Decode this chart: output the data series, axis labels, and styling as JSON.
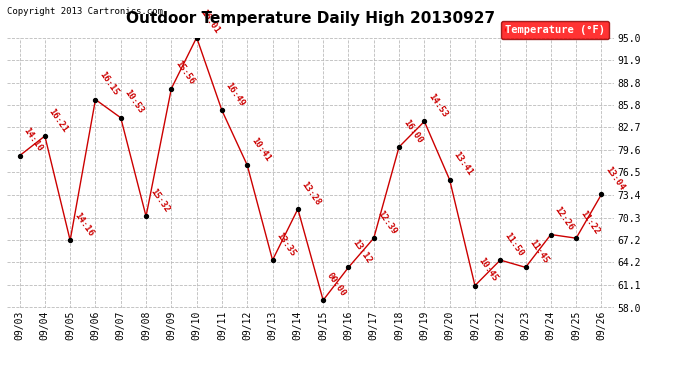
{
  "title": "Outdoor Temperature Daily High 20130927",
  "copyright": "Copyright 2013 Cartronics.com",
  "legend_label": "Temperature (°F)",
  "dates": [
    "09/03",
    "09/04",
    "09/05",
    "09/06",
    "09/07",
    "09/08",
    "09/09",
    "09/10",
    "09/11",
    "09/12",
    "09/13",
    "09/14",
    "09/15",
    "09/16",
    "09/17",
    "09/18",
    "09/19",
    "09/20",
    "09/21",
    "09/22",
    "09/23",
    "09/24",
    "09/25",
    "09/26"
  ],
  "temps": [
    78.8,
    81.5,
    67.2,
    86.5,
    84.0,
    70.5,
    88.0,
    95.0,
    85.0,
    77.5,
    64.5,
    71.5,
    59.0,
    63.5,
    67.5,
    80.0,
    83.5,
    75.5,
    61.0,
    64.5,
    63.5,
    68.0,
    67.5,
    73.5
  ],
  "labels": [
    "14:10",
    "16:21",
    "14:16",
    "16:15",
    "10:53",
    "15:32",
    "15:56",
    "16:01",
    "16:49",
    "10:41",
    "13:35",
    "13:28",
    "00:00",
    "13:12",
    "12:39",
    "16:00",
    "14:53",
    "13:41",
    "10:45",
    "11:50",
    "11:45",
    "12:26",
    "11:22",
    "13:04"
  ],
  "ylim": [
    58.0,
    95.0
  ],
  "yticks": [
    58.0,
    61.1,
    64.2,
    67.2,
    70.3,
    73.4,
    76.5,
    79.6,
    82.7,
    85.8,
    88.8,
    91.9,
    95.0
  ],
  "line_color": "#cc0000",
  "marker_color": "#000000",
  "bg_color": "#ffffff",
  "grid_color": "#bbbbbb",
  "title_fontsize": 11,
  "label_fontsize": 6.5,
  "copyright_fontsize": 6.5,
  "tick_fontsize": 7,
  "legend_fontsize": 7.5
}
